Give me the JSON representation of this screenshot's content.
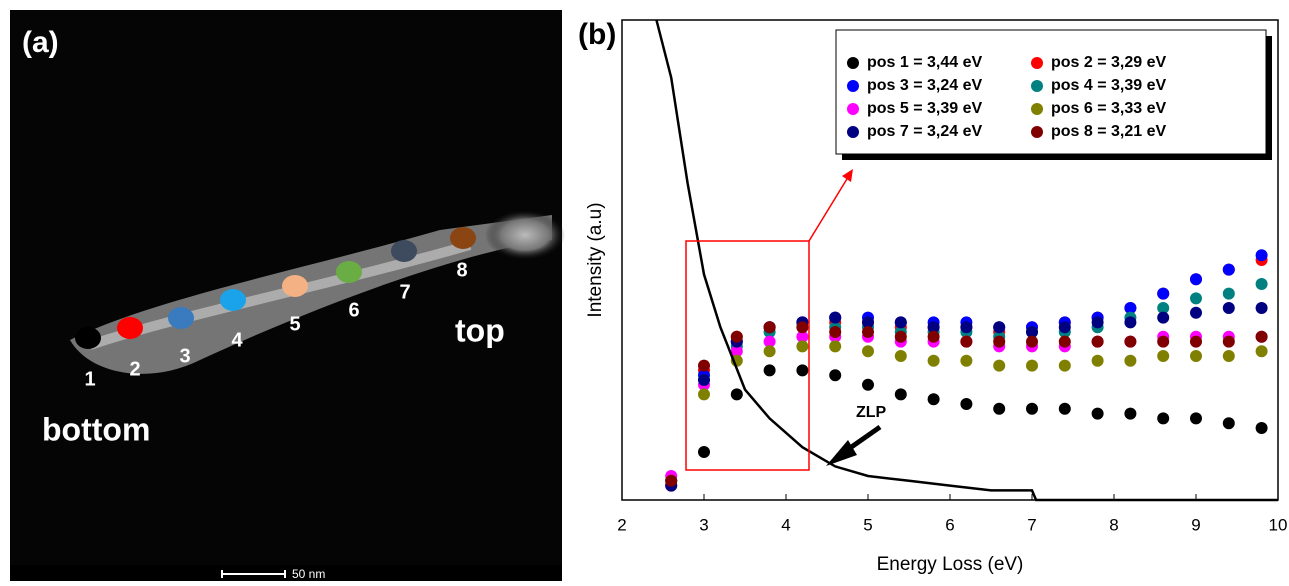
{
  "image": {
    "label": "(a)",
    "markers": [
      {
        "label": "1",
        "color": "#000000"
      },
      {
        "label": "2",
        "color": "#ff0000"
      },
      {
        "label": "3",
        "color": "#3a7abf"
      },
      {
        "label": "4",
        "color": "#1aa3ea"
      },
      {
        "label": "5",
        "color": "#f4b183"
      },
      {
        "label": "6",
        "color": "#6aad45"
      },
      {
        "label": "7",
        "color": "#3e4a5e"
      },
      {
        "label": "8",
        "color": "#8b4513"
      }
    ],
    "bottom_label": "bottom",
    "top_label": "top",
    "scale_bar": "50 nm"
  },
  "chart_data": {
    "type": "scatter",
    "panel_label": "(b)",
    "x_label": "Energy Loss (eV)",
    "y_label": "Intensity (a.u)",
    "annotation": "ZLP",
    "xlim": [
      2,
      10
    ],
    "xticks": [
      2,
      3,
      4,
      5,
      6,
      7,
      8,
      9,
      10
    ],
    "ylim": [
      0,
      100
    ],
    "x": [
      2.6,
      3.0,
      3.4,
      3.8,
      4.2,
      4.6,
      5.0,
      5.4,
      5.8,
      6.2,
      6.6,
      7.0,
      7.4,
      7.8,
      8.2,
      8.6,
      9.0,
      9.4,
      9.8
    ],
    "series": [
      {
        "name": "pos 1 = 3,44 eV",
        "color": "#000000",
        "values": [
          null,
          10,
          22,
          27,
          27,
          26,
          24,
          22,
          21,
          20,
          19,
          19,
          19,
          18,
          18,
          17,
          17,
          16,
          15
        ]
      },
      {
        "name": "pos 2 = 3,29 eV",
        "color": "#ff0000",
        "values": [
          3,
          27,
          34,
          36,
          37,
          37,
          37,
          36,
          36,
          36,
          35,
          36,
          37,
          38,
          40,
          43,
          46,
          48,
          50
        ]
      },
      {
        "name": "pos 3 = 3,24 eV",
        "color": "#0000ff",
        "values": [
          4,
          26,
          33,
          36,
          37,
          38,
          38,
          37,
          37,
          37,
          36,
          36,
          37,
          38,
          40,
          43,
          46,
          48,
          51
        ]
      },
      {
        "name": "pos 4 = 3,39 eV",
        "color": "#008080",
        "values": [
          4,
          25,
          32,
          35,
          36,
          36,
          36,
          35,
          35,
          35,
          34,
          35,
          35,
          36,
          38,
          40,
          42,
          43,
          45
        ]
      },
      {
        "name": "pos 5 = 3,39 eV",
        "color": "#ff00ff",
        "values": [
          5,
          24,
          31,
          33,
          34,
          34,
          34,
          33,
          33,
          33,
          32,
          32,
          32,
          33,
          33,
          34,
          34,
          34,
          34
        ]
      },
      {
        "name": "pos 6 = 3,33 eV",
        "color": "#808000",
        "values": [
          4,
          22,
          29,
          31,
          32,
          32,
          31,
          30,
          29,
          29,
          28,
          28,
          28,
          29,
          29,
          30,
          30,
          30,
          31
        ]
      },
      {
        "name": "pos 7 = 3,24 eV",
        "color": "#000080",
        "values": [
          3,
          25,
          33,
          36,
          37,
          38,
          37,
          37,
          36,
          36,
          36,
          35,
          36,
          37,
          37,
          38,
          39,
          40,
          40
        ]
      },
      {
        "name": "pos 8 = 3,21 eV",
        "color": "#800000",
        "values": [
          4,
          28,
          34,
          36,
          36,
          35,
          35,
          34,
          34,
          33,
          33,
          33,
          33,
          33,
          33,
          33,
          33,
          33,
          34
        ]
      }
    ],
    "zlp": {
      "type": "line",
      "color": "#000000",
      "x": [
        2.42,
        2.6,
        2.8,
        3.0,
        3.2,
        3.5,
        3.8,
        4.2,
        4.6,
        5.0,
        5.5,
        6.0,
        6.5,
        7.0,
        7.05,
        10
      ],
      "values": [
        100,
        88,
        66,
        47,
        36,
        23,
        17,
        11,
        7,
        5,
        4,
        3,
        2,
        2,
        0,
        0
      ]
    }
  }
}
